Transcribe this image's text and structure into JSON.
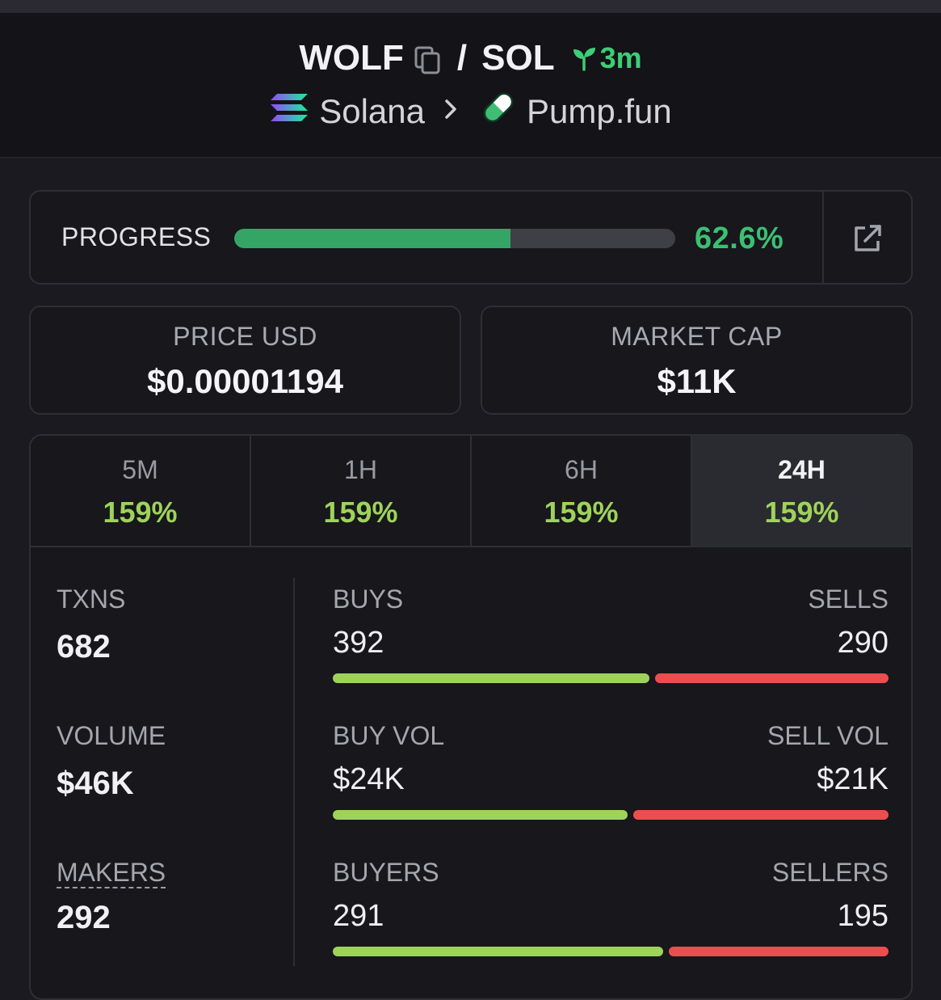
{
  "header": {
    "base_token": "WOLF",
    "separator": "/",
    "quote_token": "SOL",
    "age": "3m",
    "chain": "Solana",
    "dex": "Pump.fun",
    "icons": {
      "copy": "copy-icon",
      "age": "sprout-icon",
      "chain": "solana-logo-icon",
      "dex": "pill-icon",
      "chevron": "chevron-right-icon"
    }
  },
  "progress": {
    "label": "PROGRESS",
    "percent_text": "62.6%",
    "fill_fraction": 0.626,
    "accent": "#35a566",
    "external_icon": "external-link-icon"
  },
  "stats": {
    "price_label": "PRICE USD",
    "price_value": "$0.00001194",
    "mcap_label": "MARKET CAP",
    "mcap_value": "$11K"
  },
  "timeframes": [
    {
      "label": "5M",
      "change": "159%",
      "active": false
    },
    {
      "label": "1H",
      "change": "159%",
      "active": false
    },
    {
      "label": "6H",
      "change": "159%",
      "active": false
    },
    {
      "label": "24H",
      "change": "159%",
      "active": true
    }
  ],
  "metrics": {
    "txns_label": "TXNS",
    "txns_value": "682",
    "volume_label": "VOLUME",
    "volume_value": "$46K",
    "makers_label": "MAKERS",
    "makers_value": "292"
  },
  "splits": [
    {
      "left_label": "BUYS",
      "right_label": "SELLS",
      "left_value": "392",
      "right_value": "290",
      "left_fraction": 0.575
    },
    {
      "left_label": "BUY VOL",
      "right_label": "SELL VOL",
      "left_value": "$24K",
      "right_value": "$21K",
      "left_fraction": 0.535
    },
    {
      "left_label": "BUYERS",
      "right_label": "SELLERS",
      "left_value": "291",
      "right_value": "195",
      "left_fraction": 0.599
    }
  ],
  "colors": {
    "buy": "#9ed35a",
    "sell": "#ee4d4d",
    "positive": "#3cbf72"
  }
}
